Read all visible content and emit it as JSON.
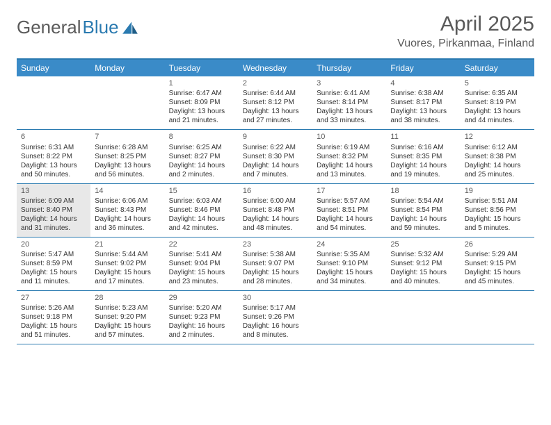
{
  "logo": {
    "text1": "General",
    "text2": "Blue"
  },
  "title": "April 2025",
  "location": "Vuores, Pirkanmaa, Finland",
  "colors": {
    "header_bar": "#3a8bc8",
    "border": "#2a7ab0",
    "text_muted": "#5a5a5a",
    "highlight_bg": "#e8e8e8"
  },
  "weekdays": [
    "Sunday",
    "Monday",
    "Tuesday",
    "Wednesday",
    "Thursday",
    "Friday",
    "Saturday"
  ],
  "weeks": [
    [
      null,
      null,
      {
        "n": "1",
        "sr": "Sunrise: 6:47 AM",
        "ss": "Sunset: 8:09 PM",
        "d1": "Daylight: 13 hours",
        "d2": "and 21 minutes."
      },
      {
        "n": "2",
        "sr": "Sunrise: 6:44 AM",
        "ss": "Sunset: 8:12 PM",
        "d1": "Daylight: 13 hours",
        "d2": "and 27 minutes."
      },
      {
        "n": "3",
        "sr": "Sunrise: 6:41 AM",
        "ss": "Sunset: 8:14 PM",
        "d1": "Daylight: 13 hours",
        "d2": "and 33 minutes."
      },
      {
        "n": "4",
        "sr": "Sunrise: 6:38 AM",
        "ss": "Sunset: 8:17 PM",
        "d1": "Daylight: 13 hours",
        "d2": "and 38 minutes."
      },
      {
        "n": "5",
        "sr": "Sunrise: 6:35 AM",
        "ss": "Sunset: 8:19 PM",
        "d1": "Daylight: 13 hours",
        "d2": "and 44 minutes."
      }
    ],
    [
      {
        "n": "6",
        "sr": "Sunrise: 6:31 AM",
        "ss": "Sunset: 8:22 PM",
        "d1": "Daylight: 13 hours",
        "d2": "and 50 minutes."
      },
      {
        "n": "7",
        "sr": "Sunrise: 6:28 AM",
        "ss": "Sunset: 8:25 PM",
        "d1": "Daylight: 13 hours",
        "d2": "and 56 minutes."
      },
      {
        "n": "8",
        "sr": "Sunrise: 6:25 AM",
        "ss": "Sunset: 8:27 PM",
        "d1": "Daylight: 14 hours",
        "d2": "and 2 minutes."
      },
      {
        "n": "9",
        "sr": "Sunrise: 6:22 AM",
        "ss": "Sunset: 8:30 PM",
        "d1": "Daylight: 14 hours",
        "d2": "and 7 minutes."
      },
      {
        "n": "10",
        "sr": "Sunrise: 6:19 AM",
        "ss": "Sunset: 8:32 PM",
        "d1": "Daylight: 14 hours",
        "d2": "and 13 minutes."
      },
      {
        "n": "11",
        "sr": "Sunrise: 6:16 AM",
        "ss": "Sunset: 8:35 PM",
        "d1": "Daylight: 14 hours",
        "d2": "and 19 minutes."
      },
      {
        "n": "12",
        "sr": "Sunrise: 6:12 AM",
        "ss": "Sunset: 8:38 PM",
        "d1": "Daylight: 14 hours",
        "d2": "and 25 minutes."
      }
    ],
    [
      {
        "n": "13",
        "hl": true,
        "sr": "Sunrise: 6:09 AM",
        "ss": "Sunset: 8:40 PM",
        "d1": "Daylight: 14 hours",
        "d2": "and 31 minutes."
      },
      {
        "n": "14",
        "sr": "Sunrise: 6:06 AM",
        "ss": "Sunset: 8:43 PM",
        "d1": "Daylight: 14 hours",
        "d2": "and 36 minutes."
      },
      {
        "n": "15",
        "sr": "Sunrise: 6:03 AM",
        "ss": "Sunset: 8:46 PM",
        "d1": "Daylight: 14 hours",
        "d2": "and 42 minutes."
      },
      {
        "n": "16",
        "sr": "Sunrise: 6:00 AM",
        "ss": "Sunset: 8:48 PM",
        "d1": "Daylight: 14 hours",
        "d2": "and 48 minutes."
      },
      {
        "n": "17",
        "sr": "Sunrise: 5:57 AM",
        "ss": "Sunset: 8:51 PM",
        "d1": "Daylight: 14 hours",
        "d2": "and 54 minutes."
      },
      {
        "n": "18",
        "sr": "Sunrise: 5:54 AM",
        "ss": "Sunset: 8:54 PM",
        "d1": "Daylight: 14 hours",
        "d2": "and 59 minutes."
      },
      {
        "n": "19",
        "sr": "Sunrise: 5:51 AM",
        "ss": "Sunset: 8:56 PM",
        "d1": "Daylight: 15 hours",
        "d2": "and 5 minutes."
      }
    ],
    [
      {
        "n": "20",
        "sr": "Sunrise: 5:47 AM",
        "ss": "Sunset: 8:59 PM",
        "d1": "Daylight: 15 hours",
        "d2": "and 11 minutes."
      },
      {
        "n": "21",
        "sr": "Sunrise: 5:44 AM",
        "ss": "Sunset: 9:02 PM",
        "d1": "Daylight: 15 hours",
        "d2": "and 17 minutes."
      },
      {
        "n": "22",
        "sr": "Sunrise: 5:41 AM",
        "ss": "Sunset: 9:04 PM",
        "d1": "Daylight: 15 hours",
        "d2": "and 23 minutes."
      },
      {
        "n": "23",
        "sr": "Sunrise: 5:38 AM",
        "ss": "Sunset: 9:07 PM",
        "d1": "Daylight: 15 hours",
        "d2": "and 28 minutes."
      },
      {
        "n": "24",
        "sr": "Sunrise: 5:35 AM",
        "ss": "Sunset: 9:10 PM",
        "d1": "Daylight: 15 hours",
        "d2": "and 34 minutes."
      },
      {
        "n": "25",
        "sr": "Sunrise: 5:32 AM",
        "ss": "Sunset: 9:12 PM",
        "d1": "Daylight: 15 hours",
        "d2": "and 40 minutes."
      },
      {
        "n": "26",
        "sr": "Sunrise: 5:29 AM",
        "ss": "Sunset: 9:15 PM",
        "d1": "Daylight: 15 hours",
        "d2": "and 45 minutes."
      }
    ],
    [
      {
        "n": "27",
        "sr": "Sunrise: 5:26 AM",
        "ss": "Sunset: 9:18 PM",
        "d1": "Daylight: 15 hours",
        "d2": "and 51 minutes."
      },
      {
        "n": "28",
        "sr": "Sunrise: 5:23 AM",
        "ss": "Sunset: 9:20 PM",
        "d1": "Daylight: 15 hours",
        "d2": "and 57 minutes."
      },
      {
        "n": "29",
        "sr": "Sunrise: 5:20 AM",
        "ss": "Sunset: 9:23 PM",
        "d1": "Daylight: 16 hours",
        "d2": "and 2 minutes."
      },
      {
        "n": "30",
        "sr": "Sunrise: 5:17 AM",
        "ss": "Sunset: 9:26 PM",
        "d1": "Daylight: 16 hours",
        "d2": "and 8 minutes."
      },
      null,
      null,
      null
    ]
  ]
}
